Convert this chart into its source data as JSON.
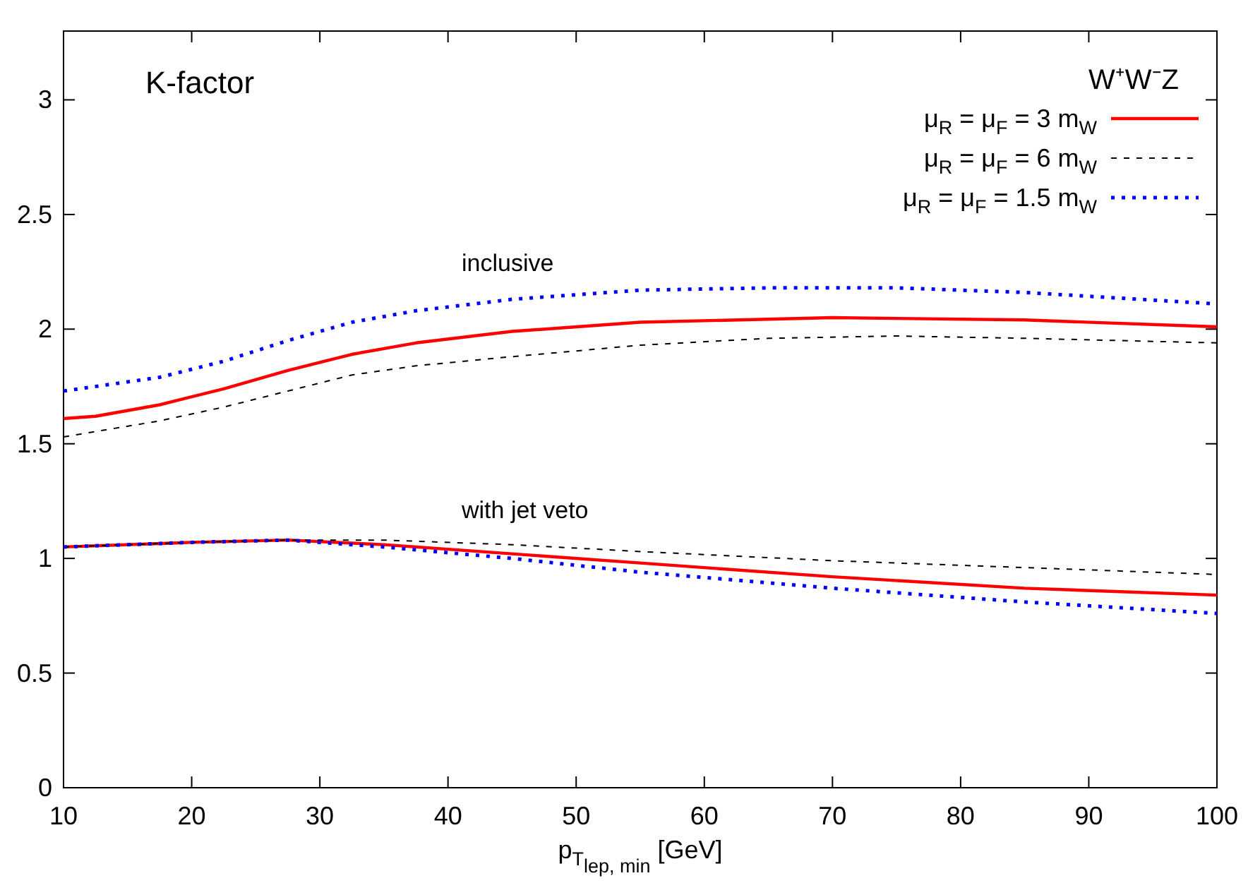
{
  "chart_data": {
    "type": "line",
    "xlabel": "p$_{T}$$_{lep, min}$ [GeV]",
    "legend_title": "W⁺W⁻Z",
    "legend": "top right",
    "xlim": [
      10,
      100
    ],
    "ylim": [
      0,
      3.3
    ],
    "xticks": [
      10,
      20,
      30,
      40,
      50,
      60,
      70,
      80,
      90,
      100
    ],
    "yticks": [
      0,
      0.5,
      1,
      1.5,
      2,
      2.5,
      3
    ],
    "annotations": [
      "K-factor",
      "inclusive",
      "with jet veto"
    ],
    "series": [
      {
        "name": "μ$_{R}$ = μ$_{F}$ = 3 m$_{W}$",
        "color": "#ff0000",
        "line_style": "solid",
        "x": [
          10,
          12.5,
          17.5,
          22.5,
          27.5,
          32.5,
          37.5,
          45,
          55,
          70,
          85,
          100
        ],
        "values": [
          1.61,
          1.62,
          1.67,
          1.74,
          1.82,
          1.89,
          1.94,
          1.99,
          2.03,
          2.05,
          2.04,
          2.01
        ]
      },
      {
        "name": "μ$_{R}$ = μ$_{F}$ = 6 m$_{W}$",
        "color": "#000000",
        "line_style": "dashed",
        "x": [
          10,
          17.5,
          22.5,
          27.5,
          32.5,
          37.5,
          45,
          55,
          65,
          75,
          85,
          100
        ],
        "values": [
          1.53,
          1.6,
          1.66,
          1.73,
          1.8,
          1.84,
          1.88,
          1.93,
          1.96,
          1.97,
          1.96,
          1.94
        ]
      },
      {
        "name": "μ$_{R}$ = μ$_{F}$ = 1.5 m$_{W}$",
        "color": "#0000ff",
        "line_style": "dotted",
        "x": [
          10,
          17.5,
          22.5,
          27.5,
          32.5,
          37.5,
          45,
          55,
          65,
          75,
          85,
          100
        ],
        "values": [
          1.73,
          1.79,
          1.86,
          1.95,
          2.03,
          2.08,
          2.13,
          2.17,
          2.18,
          2.18,
          2.16,
          2.11
        ]
      },
      {
        "color": "#ff0000",
        "line_style": "solid",
        "x": [
          10,
          20,
          27.5,
          35,
          45,
          55,
          70,
          85,
          100
        ],
        "values": [
          1.05,
          1.07,
          1.08,
          1.06,
          1.02,
          0.98,
          0.92,
          0.87,
          0.84
        ]
      },
      {
        "color": "#000000",
        "line_style": "dashed",
        "x": [
          10,
          20,
          27.5,
          35,
          45,
          55,
          70,
          85,
          100
        ],
        "values": [
          1.05,
          1.07,
          1.08,
          1.08,
          1.06,
          1.03,
          0.99,
          0.96,
          0.93
        ]
      },
      {
        "color": "#0000ff",
        "line_style": "dotted",
        "x": [
          10,
          20,
          27.5,
          35,
          45,
          55,
          70,
          85,
          100
        ],
        "values": [
          1.05,
          1.07,
          1.08,
          1.05,
          1.0,
          0.94,
          0.87,
          0.81,
          0.76
        ]
      }
    ]
  }
}
